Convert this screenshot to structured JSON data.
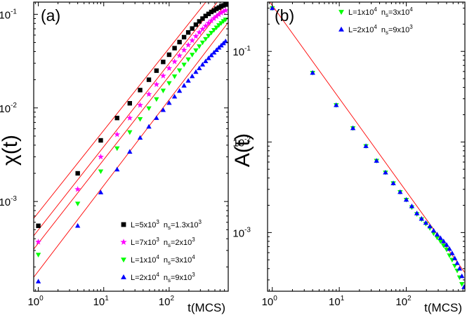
{
  "chart_data": [
    {
      "type": "scatter",
      "panel_label": "(a)",
      "xlabel": "t(MCS)",
      "ylabel": "χ(t)",
      "xscale": "log",
      "yscale": "log",
      "xlim": [
        0.85,
        800
      ],
      "ylim": [
        0.00011,
        0.135
      ],
      "xticks": [
        {
          "value": 1,
          "base": "10",
          "exp": "0"
        },
        {
          "value": 10,
          "base": "10",
          "exp": "1"
        },
        {
          "value": 100,
          "base": "10",
          "exp": "2"
        }
      ],
      "yticks": [
        {
          "value": 0.001,
          "base": "10",
          "exp": "-3"
        },
        {
          "value": 0.01,
          "base": "10",
          "exp": "-2"
        },
        {
          "value": 0.1,
          "base": "10",
          "exp": "-1"
        }
      ],
      "legend_position": "bottom-right",
      "series": [
        {
          "L_text": "L=5x10",
          "L_exp": "3",
          "n_text": "n",
          "n_sub": "s",
          "n_val": "=1.3x10",
          "n_exp": "3",
          "marker": "square",
          "color": "#000000",
          "x": [
            1,
            4,
            9,
            16,
            25,
            36,
            49,
            64,
            81,
            100,
            121,
            144,
            169,
            196,
            225,
            256,
            289,
            324,
            361,
            400,
            441,
            484,
            529,
            576,
            625,
            676,
            729
          ],
          "y": [
            0.00055,
            0.002,
            0.0045,
            0.0078,
            0.0112,
            0.0155,
            0.02,
            0.025,
            0.031,
            0.037,
            0.0435,
            0.0505,
            0.057,
            0.064,
            0.0705,
            0.0775,
            0.084,
            0.09,
            0.096,
            0.101,
            0.106,
            0.11,
            0.1145,
            0.118,
            0.1215,
            0.1245,
            0.127
          ]
        },
        {
          "L_text": "L=7x10",
          "L_exp": "3",
          "n_text": "n",
          "n_sub": "s",
          "n_val": "=2x10",
          "n_exp": "3",
          "marker": "star",
          "color": "#ff00ff",
          "x": [
            1,
            4,
            9,
            16,
            25,
            36,
            49,
            64,
            81,
            100,
            121,
            144,
            169,
            196,
            225,
            256,
            289,
            324,
            361,
            400,
            441,
            484,
            529,
            576,
            625,
            676,
            729
          ],
          "y": [
            0.00037,
            0.00135,
            0.003,
            0.0052,
            0.0078,
            0.0107,
            0.014,
            0.0178,
            0.022,
            0.0265,
            0.0312,
            0.0362,
            0.0415,
            0.047,
            0.0525,
            0.0582,
            0.064,
            0.0695,
            0.075,
            0.0805,
            0.0855,
            0.0905,
            0.095,
            0.0995,
            0.1035,
            0.107,
            0.11
          ]
        },
        {
          "L_text": "L=1x10",
          "L_exp": "4",
          "n_text": "n",
          "n_sub": "s",
          "n_val": "=3x10",
          "n_exp": "4",
          "marker": "triangle-down",
          "color": "#00ff00",
          "x": [
            1,
            4,
            9,
            16,
            25,
            36,
            49,
            64,
            81,
            100,
            121,
            144,
            169,
            196,
            225,
            256,
            289,
            324,
            361,
            400,
            441,
            484,
            529,
            576,
            625,
            676,
            729
          ],
          "y": [
            0.00027,
            0.00095,
            0.0021,
            0.0037,
            0.0055,
            0.0076,
            0.0099,
            0.0124,
            0.0153,
            0.0184,
            0.0217,
            0.0252,
            0.029,
            0.033,
            0.037,
            0.0412,
            0.0455,
            0.05,
            0.0545,
            0.059,
            0.0635,
            0.068,
            0.0722,
            0.0765,
            0.0805,
            0.0845,
            0.088
          ]
        },
        {
          "L_text": "L=2x10",
          "L_exp": "4",
          "n_text": "n",
          "n_sub": "s",
          "n_val": "=9x10",
          "n_exp": "3",
          "marker": "triangle-up",
          "color": "#0000ff",
          "x": [
            1,
            4,
            9,
            16,
            25,
            36,
            49,
            64,
            81,
            100,
            121,
            144,
            169,
            196,
            225,
            256,
            289,
            324,
            361,
            400,
            441,
            484,
            529,
            576,
            625,
            676,
            729
          ],
          "y": [
            0.00014,
            0.00055,
            0.00125,
            0.0022,
            0.0034,
            0.0048,
            0.0063,
            0.0078,
            0.0095,
            0.0113,
            0.0132,
            0.0152,
            0.0173,
            0.0195,
            0.0218,
            0.0242,
            0.0265,
            0.029,
            0.0315,
            0.034,
            0.0365,
            0.039,
            0.0415,
            0.044,
            0.0465,
            0.049,
            0.0515
          ]
        }
      ],
      "fit_lines": [
        {
          "color": "#ff0000",
          "x": [
            0.85,
            800
          ],
          "y": [
            0.00066,
            0.27
          ]
        },
        {
          "color": "#ff0000",
          "x": [
            0.85,
            800
          ],
          "y": [
            0.00043,
            0.19
          ]
        },
        {
          "color": "#ff0000",
          "x": [
            0.85,
            800
          ],
          "y": [
            0.00031,
            0.14
          ]
        },
        {
          "color": "#ff0000",
          "x": [
            0.85,
            800
          ],
          "y": [
            0.000155,
            0.082
          ]
        }
      ]
    },
    {
      "type": "scatter",
      "panel_label": "(b)",
      "xlabel": "t(MCS)",
      "ylabel": "A(t)",
      "xscale": "log",
      "yscale": "log",
      "xlim": [
        0.85,
        750
      ],
      "ylim": [
        0.000225,
        0.35
      ],
      "xticks": [
        {
          "value": 1,
          "base": "10",
          "exp": "0"
        },
        {
          "value": 10,
          "base": "10",
          "exp": "1"
        },
        {
          "value": 100,
          "base": "10",
          "exp": "2"
        }
      ],
      "yticks": [
        {
          "value": 0.001,
          "base": "10",
          "exp": "-3"
        },
        {
          "value": 0.01,
          "base": "10",
          "exp": "-2"
        },
        {
          "value": 0.1,
          "base": "10",
          "exp": "-1"
        }
      ],
      "legend_position": "top-right",
      "series": [
        {
          "L_text": "L=1x10",
          "L_exp": "4",
          "n_text": "n",
          "n_sub": "s",
          "n_val": "=3x10",
          "n_exp": "4",
          "marker": "triangle-down",
          "color": "#00ff00",
          "x": [
            1,
            4,
            9,
            16,
            25,
            36,
            49,
            64,
            81,
            100,
            121,
            144,
            169,
            196,
            225,
            256,
            289,
            324,
            361,
            400,
            441,
            484,
            529,
            576,
            625,
            676
          ],
          "y": [
            0.3,
            0.058,
            0.0255,
            0.0142,
            0.009,
            0.0062,
            0.0046,
            0.0035,
            0.0028,
            0.0023,
            0.0019,
            0.0016,
            0.0014,
            0.00125,
            0.00112,
            0.00098,
            0.00088,
            0.0008,
            0.00072,
            0.00065,
            0.00056,
            0.0005,
            0.00043,
            0.00038,
            0.00032,
            0.00027
          ]
        },
        {
          "L_text": "L=2x10",
          "L_exp": "4",
          "n_text": "n",
          "n_sub": "s",
          "n_val": "=9x10",
          "n_exp": "3",
          "marker": "triangle-up",
          "color": "#0000ff",
          "x": [
            1,
            4,
            9,
            16,
            25,
            36,
            49,
            64,
            81,
            100,
            121,
            144,
            169,
            196,
            225,
            256,
            289,
            324,
            361,
            400,
            441,
            484,
            529,
            576,
            625,
            676,
            729
          ],
          "y": [
            0.3,
            0.058,
            0.0255,
            0.0142,
            0.009,
            0.0062,
            0.0046,
            0.0035,
            0.0028,
            0.0023,
            0.00195,
            0.00163,
            0.00142,
            0.00128,
            0.00117,
            0.00105,
            0.00095,
            0.00087,
            0.0008,
            0.00073,
            0.00066,
            0.00059,
            0.00052,
            0.00046,
            0.0004,
            0.00033,
            0.00025
          ]
        }
      ],
      "fit_lines": [
        {
          "color": "#ff0000",
          "x": [
            0.85,
            750
          ],
          "y": [
            0.38,
            0.00036
          ]
        }
      ]
    }
  ]
}
